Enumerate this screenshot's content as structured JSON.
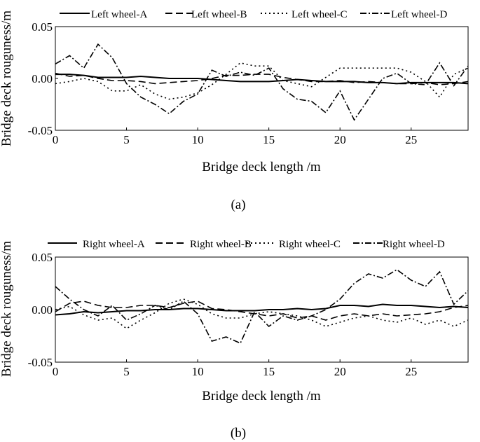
{
  "figure": {
    "captions": [
      "(a)",
      "(b)"
    ]
  },
  "chart_data": [
    {
      "type": "line",
      "panel": "(a)",
      "xlabel": "Bridge deck length /m",
      "ylabel": "Bridge deck rouguness/m",
      "xlim": [
        0,
        29
      ],
      "ylim": [
        -0.05,
        0.05
      ],
      "xticks": [
        0,
        5,
        10,
        15,
        20,
        25
      ],
      "yticks": [
        -0.05,
        0.0,
        0.05
      ],
      "ytick_labels": [
        "-0.05",
        "0.00",
        "0.05"
      ],
      "grid": false,
      "legend": "top",
      "x": [
        0,
        1,
        2,
        3,
        4,
        5,
        6,
        7,
        8,
        9,
        10,
        11,
        12,
        13,
        14,
        15,
        16,
        17,
        18,
        19,
        20,
        21,
        22,
        23,
        24,
        25,
        26,
        27,
        28,
        29
      ],
      "series": [
        {
          "name": "Left wheel-A",
          "dash": "solid",
          "values": [
            0.004,
            0.004,
            0.003,
            0.001,
            0.001,
            0.001,
            0.002,
            0.001,
            0.0,
            0.0,
            0.0,
            -0.001,
            -0.002,
            -0.003,
            -0.003,
            -0.003,
            -0.002,
            -0.001,
            -0.002,
            -0.003,
            -0.003,
            -0.003,
            -0.004,
            -0.004,
            -0.005,
            -0.004,
            -0.004,
            -0.004,
            -0.004,
            -0.005
          ]
        },
        {
          "name": "Left wheel-B",
          "dash": "dashed",
          "values": [
            0.005,
            0.002,
            0.003,
            0.0,
            -0.002,
            -0.002,
            -0.003,
            -0.005,
            -0.004,
            -0.003,
            -0.002,
            0.0,
            0.003,
            0.003,
            0.004,
            0.004,
            0.001,
            -0.001,
            -0.003,
            -0.003,
            -0.002,
            -0.004,
            -0.003,
            -0.004,
            -0.005,
            -0.005,
            -0.004,
            -0.006,
            -0.005,
            -0.003
          ]
        },
        {
          "name": "Left wheel-C",
          "dash": "dotted",
          "values": [
            -0.005,
            -0.003,
            0.0,
            -0.003,
            -0.012,
            -0.012,
            -0.006,
            -0.015,
            -0.02,
            -0.018,
            -0.014,
            -0.006,
            0.004,
            0.015,
            0.012,
            0.012,
            -0.002,
            -0.005,
            -0.008,
            0.001,
            0.01,
            0.01,
            0.01,
            0.01,
            0.01,
            0.006,
            -0.003,
            -0.018,
            0.004,
            0.01
          ]
        },
        {
          "name": "Left wheel-D",
          "dash": "dashdot",
          "values": [
            0.014,
            0.022,
            0.01,
            0.033,
            0.02,
            -0.005,
            -0.018,
            -0.025,
            -0.034,
            -0.022,
            -0.015,
            0.008,
            0.002,
            0.006,
            0.003,
            0.01,
            -0.01,
            -0.02,
            -0.022,
            -0.033,
            -0.012,
            -0.04,
            -0.02,
            0.0,
            0.005,
            -0.005,
            -0.006,
            0.015,
            -0.007,
            0.012
          ]
        }
      ]
    },
    {
      "type": "line",
      "panel": "(b)",
      "xlabel": "Bridge deck length /m",
      "ylabel": "Bridge deck rouguness/m",
      "xlim": [
        0,
        29
      ],
      "ylim": [
        -0.05,
        0.05
      ],
      "xticks": [
        0,
        5,
        10,
        15,
        20,
        25
      ],
      "yticks": [
        -0.05,
        0.0,
        0.05
      ],
      "ytick_labels": [
        "-0.05",
        "0.00",
        "0.05"
      ],
      "grid": false,
      "legend": "top",
      "x": [
        0,
        1,
        2,
        3,
        4,
        5,
        6,
        7,
        8,
        9,
        10,
        11,
        12,
        13,
        14,
        15,
        16,
        17,
        18,
        19,
        20,
        21,
        22,
        23,
        24,
        25,
        26,
        27,
        28,
        29
      ],
      "series": [
        {
          "name": "Right wheel-A",
          "dash": "solid",
          "values": [
            -0.005,
            -0.004,
            -0.002,
            -0.003,
            -0.002,
            -0.001,
            -0.001,
            0.0,
            0.0,
            0.001,
            0.001,
            0.0,
            -0.001,
            -0.001,
            -0.001,
            0.0,
            0.0,
            0.001,
            0.0,
            0.001,
            0.004,
            0.004,
            0.003,
            0.005,
            0.004,
            0.004,
            0.003,
            0.002,
            0.003,
            0.002
          ]
        },
        {
          "name": "Right wheel-B",
          "dash": "dashed",
          "values": [
            -0.002,
            0.006,
            0.008,
            0.004,
            0.002,
            0.002,
            0.004,
            0.004,
            0.002,
            0.006,
            0.008,
            0.001,
            0.0,
            -0.002,
            -0.004,
            -0.006,
            -0.004,
            -0.008,
            -0.006,
            -0.01,
            -0.006,
            -0.004,
            -0.006,
            -0.004,
            -0.006,
            -0.005,
            -0.004,
            -0.002,
            0.002,
            0.004
          ]
        },
        {
          "name": "Right wheel-C",
          "dash": "dotted",
          "values": [
            0.0,
            0.003,
            -0.005,
            -0.01,
            -0.008,
            -0.018,
            -0.01,
            -0.003,
            0.006,
            0.01,
            0.005,
            -0.004,
            -0.008,
            -0.008,
            -0.004,
            -0.002,
            -0.004,
            -0.006,
            -0.01,
            -0.016,
            -0.012,
            -0.008,
            -0.006,
            -0.01,
            -0.012,
            -0.008,
            -0.014,
            -0.01,
            -0.016,
            -0.01
          ]
        },
        {
          "name": "Right wheel-D",
          "dash": "dashdot",
          "values": [
            0.022,
            0.01,
            0.0,
            -0.006,
            0.004,
            -0.01,
            -0.004,
            0.004,
            0.0,
            0.008,
            -0.004,
            -0.03,
            -0.026,
            -0.032,
            -0.002,
            -0.016,
            -0.006,
            -0.01,
            -0.006,
            0.0,
            0.01,
            0.025,
            0.034,
            0.03,
            0.038,
            0.028,
            0.022,
            0.036,
            0.005,
            0.018
          ]
        }
      ]
    }
  ]
}
